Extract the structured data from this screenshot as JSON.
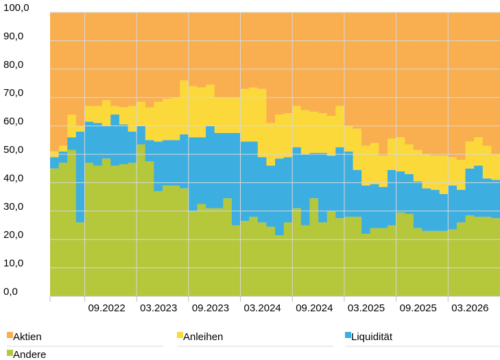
{
  "chart_data": {
    "type": "stacked_bar",
    "categories": [
      null,
      null,
      null,
      null,
      "09.2022",
      null,
      null,
      null,
      null,
      null,
      "03.2023",
      null,
      null,
      null,
      null,
      null,
      "09.2023",
      null,
      null,
      null,
      null,
      null,
      "03.2024",
      null,
      null,
      null,
      null,
      null,
      "09.2024",
      null,
      null,
      null,
      null,
      null,
      "03.2025",
      null,
      null,
      null,
      null,
      null,
      "09.2025",
      null,
      null,
      null,
      null,
      null,
      "03.2026",
      null,
      null,
      null,
      null,
      null
    ],
    "series": [
      {
        "name": "Aktien",
        "color": "#f9ae4f",
        "values": [
          49,
          47,
          36,
          40,
          33,
          33,
          31,
          33,
          33.5,
          33,
          31.5,
          33.5,
          31.5,
          30.5,
          30,
          24,
          26,
          26.5,
          25.5,
          30,
          30,
          30,
          27,
          26.5,
          27,
          39,
          36,
          35.5,
          33,
          34.5,
          35,
          35.5,
          36.5,
          33,
          40,
          41,
          47,
          46,
          50.5,
          44.5,
          44,
          46.5,
          48.5,
          50,
          50.5,
          50.5,
          51,
          52,
          45.5,
          44,
          47,
          50
        ]
      },
      {
        "name": "Anleihen",
        "color": "#fbd93a",
        "values": [
          2,
          2,
          8,
          2,
          5.5,
          6,
          9,
          3,
          6,
          9,
          8.5,
          11.5,
          14,
          14.5,
          15,
          19,
          18,
          17.5,
          14.5,
          12.5,
          12.5,
          12.5,
          18.5,
          19,
          24,
          15,
          15.5,
          15.5,
          14.5,
          15.5,
          14.5,
          14,
          14,
          14.5,
          9,
          14.5,
          14,
          14.5,
          11,
          11,
          12,
          10.5,
          11,
          12,
          12,
          13.5,
          10,
          10.5,
          9.5,
          10,
          11.5,
          9
        ]
      },
      {
        "name": "Liquidität",
        "color": "#3daee0",
        "values": [
          4,
          4,
          4.5,
          32,
          14.5,
          15,
          11.5,
          18,
          14,
          11,
          6.5,
          7.5,
          17.5,
          16,
          16,
          19,
          26,
          23.5,
          29,
          26.5,
          23,
          32.5,
          28,
          26.5,
          23,
          21.5,
          27,
          23,
          21.5,
          25,
          16,
          24.5,
          19.5,
          25,
          23,
          16.5,
          17,
          15.5,
          14.5,
          19.5,
          14.5,
          14,
          16.5,
          15,
          14.5,
          13,
          15.5,
          11.5,
          16.5,
          18,
          13.5,
          13.5
        ]
      },
      {
        "name": "Andere",
        "color": "#b5c73b",
        "values": [
          45,
          47,
          51.5,
          26,
          47,
          46,
          48.5,
          46,
          46.5,
          47,
          53.5,
          47.5,
          37,
          39,
          39,
          38,
          30,
          32.5,
          31,
          31,
          34.5,
          25,
          26.5,
          28,
          26,
          24.5,
          21.5,
          26,
          31,
          25,
          34.5,
          26,
          30,
          27.5,
          28,
          28,
          22,
          24,
          24,
          25,
          29.5,
          29,
          24,
          23,
          23,
          23,
          23.5,
          26,
          28.5,
          28,
          28,
          27.5
        ]
      }
    ],
    "ylim": [
      0,
      100
    ],
    "yticks": [
      {
        "value": 0,
        "label": "0,0"
      },
      {
        "value": 10,
        "label": "10,0"
      },
      {
        "value": 20,
        "label": "20,0"
      },
      {
        "value": 30,
        "label": "30,0"
      },
      {
        "value": 40,
        "label": "40,0"
      },
      {
        "value": 50,
        "label": "50,0"
      },
      {
        "value": 60,
        "label": "60,0"
      },
      {
        "value": 70,
        "label": "70,0"
      },
      {
        "value": 80,
        "label": "80,0"
      },
      {
        "value": 90,
        "label": "90,0"
      },
      {
        "value": 100,
        "label": "100,0"
      }
    ],
    "grid": true,
    "legend": "bottom"
  }
}
